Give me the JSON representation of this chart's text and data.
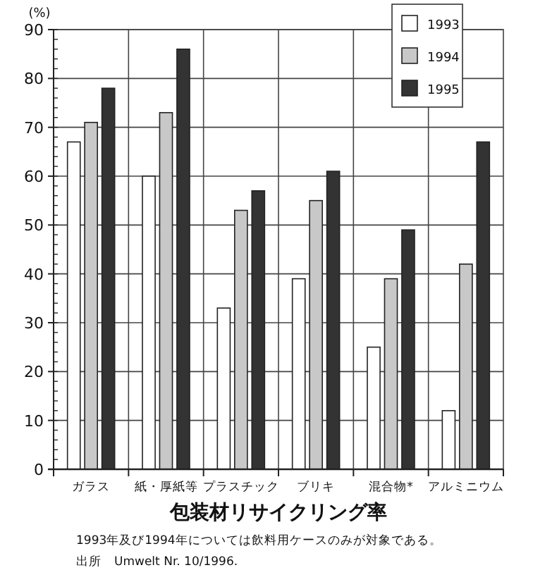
{
  "chart_data": {
    "type": "bar",
    "title": "包装材リサイクリング率",
    "ylabel": "(%)",
    "categories": [
      "ガラス",
      "紙・厚紙等",
      "プラスチック",
      "ブリキ",
      "混合物*",
      "アルミニウム"
    ],
    "series": [
      {
        "name": "1993",
        "color": "#ffffff",
        "values": [
          67,
          60,
          33,
          39,
          25,
          12
        ]
      },
      {
        "name": "1994",
        "color": "#c8c8c8",
        "values": [
          71,
          73,
          53,
          55,
          39,
          42
        ]
      },
      {
        "name": "1995",
        "color": "#333333",
        "values": [
          78,
          86,
          57,
          61,
          49,
          67
        ]
      }
    ],
    "ylim": [
      0,
      90
    ],
    "yticks": [
      0,
      10,
      20,
      30,
      40,
      50,
      60,
      70,
      80,
      90
    ],
    "grid": true,
    "legend": "top right",
    "annotations": [
      "1993年及び1994年については飲料用ケースのみが対象である。",
      "出所　Umwelt Nr. 10/1996."
    ]
  }
}
